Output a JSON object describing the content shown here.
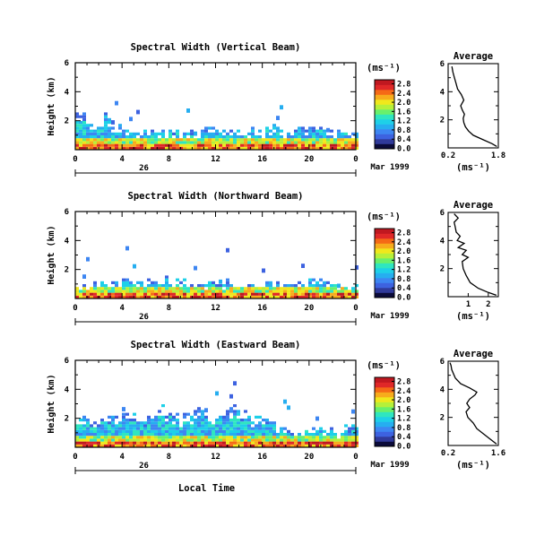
{
  "figure": {
    "x_axis_label": "Local Time",
    "date_label": "Mar 1999",
    "day_label": "26"
  },
  "colors": {
    "colormap": [
      "#0b0b3a",
      "#303a9a",
      "#3d62e0",
      "#3d86f2",
      "#26aef0",
      "#1ed0e8",
      "#2fe6c0",
      "#69f06c",
      "#b6f03a",
      "#f0e81c",
      "#f7ac1c",
      "#f56a16",
      "#e02828",
      "#c01820"
    ]
  },
  "chart_data": [
    {
      "type": "heatmap",
      "title": "Spectral Width (Vertical Beam)",
      "xlabel": "",
      "ylabel": "Height (km)",
      "xlim": [
        0,
        24
      ],
      "ylim": [
        0,
        6
      ],
      "xticks": [
        "0",
        "4",
        "8",
        "12",
        "16",
        "20",
        "0"
      ],
      "yticks": [
        "2",
        "4",
        "6"
      ],
      "colorbar": {
        "unit": "(ms⁻¹)",
        "ticks": [
          "0.0",
          "0.4",
          "0.8",
          "1.2",
          "1.6",
          "2.0",
          "2.4",
          "2.8"
        ],
        "range": [
          0,
          2.8
        ]
      },
      "echo_top_km": [
        2.7,
        1.7,
        2.5,
        1.6,
        1.4,
        1.4,
        1.4,
        1.5,
        1.3,
        1.5,
        1.4,
        1.6,
        1.5,
        1.6,
        1.4,
        1.5,
        1.7,
        1.5,
        1.4,
        1.6,
        1.7,
        1.5,
        1.5,
        1.4
      ],
      "average_profile": {
        "title": "Average",
        "xlabel": "(ms⁻¹)",
        "xticks": [
          "0.2",
          "1.8"
        ],
        "yticks": [
          "2",
          "4",
          "6"
        ],
        "xlim": [
          0.2,
          1.8
        ],
        "ylim": [
          0,
          6
        ],
        "x": [
          1.75,
          1.6,
          1.3,
          1.0,
          0.85,
          0.75,
          0.7,
          0.68,
          0.72,
          0.65,
          0.6,
          0.7,
          0.62,
          0.5,
          0.45,
          0.4,
          0.35,
          0.32
        ],
        "y": [
          0.1,
          0.3,
          0.6,
          0.9,
          1.2,
          1.5,
          1.8,
          2.1,
          2.4,
          2.7,
          3.0,
          3.4,
          3.8,
          4.2,
          4.6,
          5.0,
          5.4,
          5.8
        ]
      }
    },
    {
      "type": "heatmap",
      "title": "Spectral Width (Northward Beam)",
      "xlabel": "",
      "ylabel": "Height (km)",
      "xlim": [
        0,
        24
      ],
      "ylim": [
        0,
        6
      ],
      "xticks": [
        "0",
        "4",
        "8",
        "12",
        "16",
        "20",
        "0"
      ],
      "yticks": [
        "2",
        "4",
        "6"
      ],
      "colorbar": {
        "unit": "(ms⁻¹)",
        "ticks": [
          "0.0",
          "0.4",
          "0.8",
          "1.2",
          "1.6",
          "2.0",
          "2.4",
          "2.8"
        ],
        "range": [
          0,
          2.8
        ]
      },
      "echo_top_km": [
        1.1,
        1.0,
        1.2,
        1.3,
        1.4,
        1.3,
        1.6,
        1.5,
        1.3,
        1.2,
        1.1,
        1.3,
        1.2,
        1.2,
        1.1,
        1.2,
        1.3,
        1.1,
        1.0,
        1.2,
        1.3,
        1.1,
        1.2,
        1.1
      ],
      "average_profile": {
        "title": "Average",
        "xlabel": "(ms⁻¹)",
        "xticks": [
          "1",
          "2"
        ],
        "yticks": [
          "2",
          "4",
          "6"
        ],
        "xlim": [
          0,
          2.5
        ],
        "ylim": [
          0,
          6
        ],
        "x": [
          2.4,
          2.0,
          1.5,
          1.1,
          0.9,
          0.75,
          0.7,
          1.0,
          0.7,
          0.9,
          0.5,
          0.8,
          0.45,
          0.6,
          0.4,
          0.35,
          0.3,
          0.5,
          0.3
        ],
        "y": [
          0.1,
          0.3,
          0.6,
          1.0,
          1.5,
          2.0,
          2.5,
          2.8,
          3.0,
          3.3,
          3.5,
          3.8,
          4.0,
          4.3,
          4.6,
          5.0,
          5.3,
          5.6,
          5.9
        ]
      }
    },
    {
      "type": "heatmap",
      "title": "Spectral Width (Eastward Beam)",
      "xlabel": "",
      "ylabel": "Height (km)",
      "xlim": [
        0,
        24
      ],
      "ylim": [
        0,
        6
      ],
      "xticks": [
        "0",
        "4",
        "8",
        "12",
        "16",
        "20",
        "0"
      ],
      "yticks": [
        "2",
        "4",
        "6"
      ],
      "colorbar": {
        "unit": "(ms⁻¹)",
        "ticks": [
          "0.0",
          "0.4",
          "0.8",
          "1.2",
          "1.6",
          "2.0",
          "2.4",
          "2.8"
        ],
        "range": [
          0,
          2.8
        ]
      },
      "echo_top_km": [
        2.2,
        2.0,
        2.1,
        2.4,
        2.6,
        2.0,
        2.4,
        2.8,
        2.2,
        2.5,
        2.7,
        2.3,
        2.6,
        2.8,
        2.4,
        2.2,
        1.8,
        1.4,
        1.3,
        1.3,
        1.5,
        1.3,
        1.2,
        1.4
      ],
      "average_profile": {
        "title": "Average",
        "xlabel": "(ms⁻¹)",
        "xticks": [
          "0.2",
          "1.6"
        ],
        "yticks": [
          "2",
          "4",
          "6"
        ],
        "xlim": [
          0.2,
          1.6
        ],
        "ylim": [
          0,
          6
        ],
        "x": [
          1.55,
          1.4,
          1.2,
          1.0,
          0.9,
          0.75,
          0.7,
          0.8,
          0.72,
          0.8,
          0.95,
          1.0,
          0.8,
          0.55,
          0.4,
          0.35,
          0.3,
          0.28,
          0.25
        ],
        "y": [
          0.1,
          0.4,
          0.8,
          1.2,
          1.6,
          2.0,
          2.4,
          2.7,
          3.0,
          3.3,
          3.6,
          3.8,
          4.1,
          4.4,
          4.8,
          5.1,
          5.4,
          5.7,
          5.9
        ]
      }
    }
  ]
}
